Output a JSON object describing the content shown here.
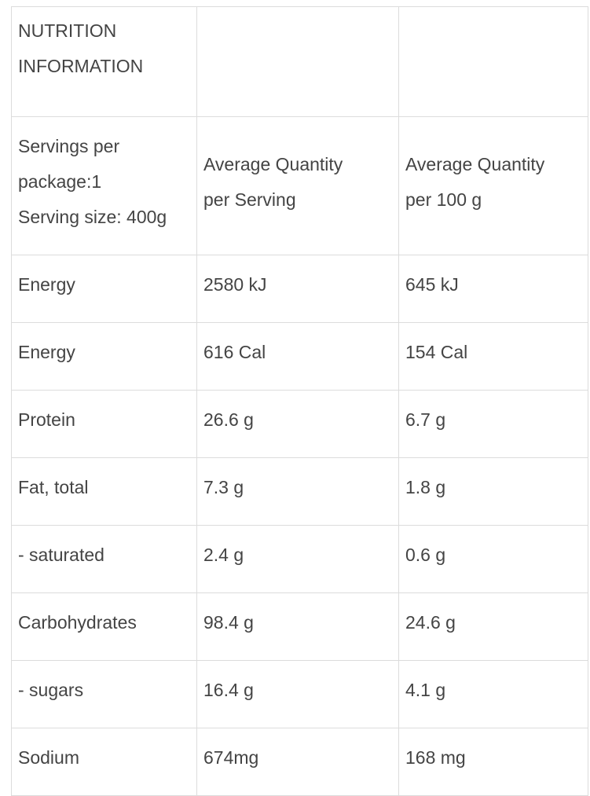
{
  "table": {
    "rows": [
      [
        [
          "NUTRITION",
          "INFORMATION"
        ]
      ],
      [
        [
          "Servings per",
          "package:1",
          "Serving size: 400g"
        ],
        [
          "Average Quantity",
          "per Serving"
        ],
        [
          "Average Quantity",
          "per 100 g"
        ]
      ],
      [
        "Energy",
        "2580 kJ",
        "645 kJ"
      ],
      [
        "Energy",
        "616 Cal",
        "154 Cal"
      ],
      [
        "Protein",
        "26.6 g",
        "6.7 g"
      ],
      [
        "Fat, total",
        "7.3 g",
        "1.8 g"
      ],
      [
        "- saturated",
        "2.4 g",
        "0.6 g"
      ],
      [
        "Carbohydrates",
        "98.4 g",
        "24.6 g"
      ],
      [
        "- sugars",
        "16.4 g",
        "4.1 g"
      ],
      [
        "Sodium",
        "674mg",
        "168 mg"
      ]
    ]
  }
}
